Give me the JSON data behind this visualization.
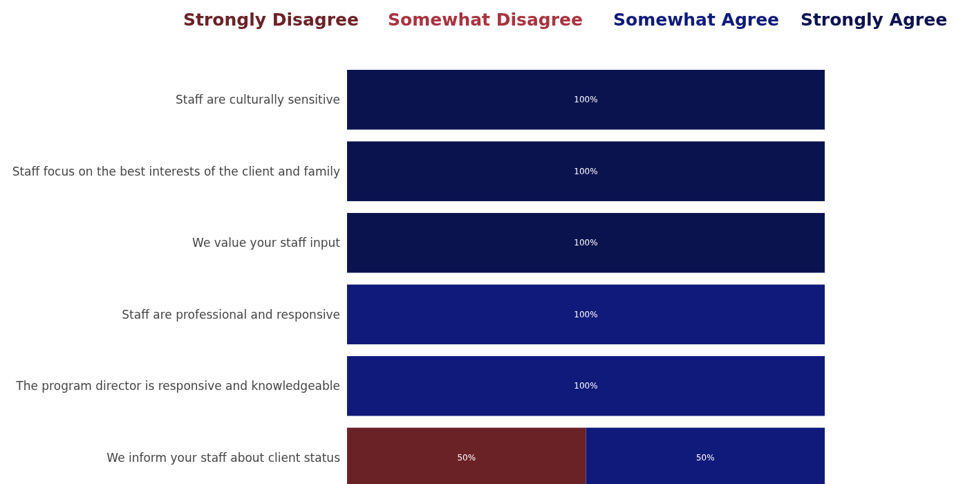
{
  "chart_data": {
    "type": "bar",
    "orientation": "horizontal",
    "stacked": true,
    "legend": "top",
    "tick_labels": "y",
    "xlim": [
      0,
      100
    ],
    "categories": [
      "Staff are culturally sensitive",
      "Staff focus on the best interests of the client and family",
      "We value your staff input",
      "Staff are professional and responsive",
      "The program director is responsive and knowledgeable",
      "We inform your staff about client status"
    ],
    "series": [
      {
        "name": "Strongly Disagree",
        "color": "#6b2227",
        "values": [
          0,
          0,
          0,
          0,
          0,
          50
        ],
        "value_labels": [
          null,
          null,
          null,
          null,
          null,
          "50%"
        ]
      },
      {
        "name": "Somewhat Disagree",
        "color": "#a8343f",
        "values": [
          0,
          0,
          0,
          0,
          0,
          0
        ],
        "value_labels": [
          null,
          null,
          null,
          null,
          null,
          null
        ]
      },
      {
        "name": "Somewhat Agree",
        "color": "#101a7a",
        "values": [
          0,
          0,
          0,
          100,
          100,
          50
        ],
        "value_labels": [
          null,
          null,
          null,
          "100%",
          "100%",
          "50%"
        ]
      },
      {
        "name": "Strongly Agree",
        "color": "#0b134f",
        "values": [
          100,
          100,
          100,
          0,
          0,
          0
        ],
        "value_labels": [
          "100%",
          "100%",
          "100%",
          null,
          null,
          null
        ]
      }
    ]
  }
}
